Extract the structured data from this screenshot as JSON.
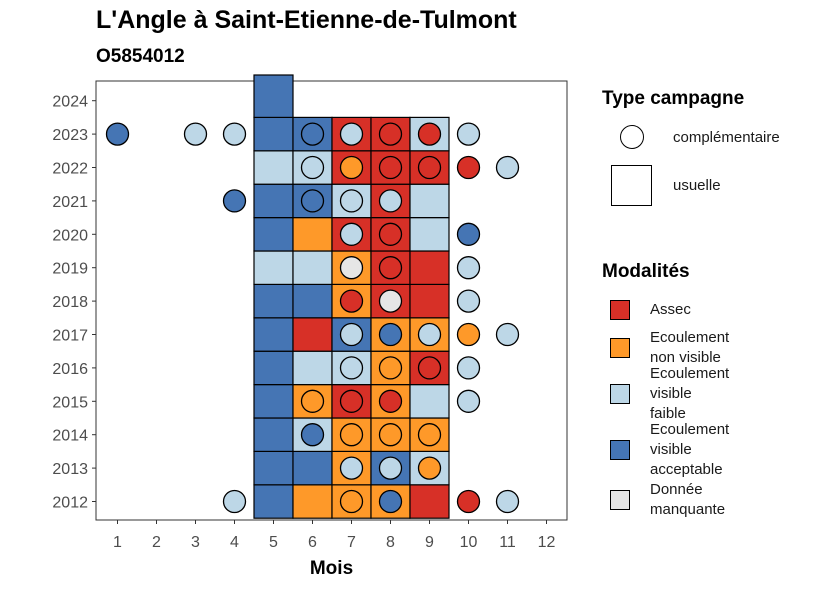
{
  "chart_data": {
    "type": "heatmap",
    "title": "L'Angle à Saint-Etienne-de-Tulmont",
    "subtitle": "O5854012",
    "xlabel": "Mois",
    "ylabel": "",
    "x_ticks": [
      1,
      2,
      3,
      4,
      5,
      6,
      7,
      8,
      9,
      10,
      11,
      12
    ],
    "years": [
      2012,
      2013,
      2014,
      2015,
      2016,
      2017,
      2018,
      2019,
      2020,
      2021,
      2022,
      2023,
      2024
    ],
    "colors": {
      "Assec": "#d73027",
      "Ecoulement non visible": "#fe9929",
      "Ecoulement visible faible": "#bdd7e7",
      "Ecoulement visible acceptable": "#4575b4",
      "Donnée manquante": "#e6e6e6"
    },
    "usuelle": [
      {
        "year": 2012,
        "cells": [
          "Ecoulement visible acceptable",
          "Ecoulement non visible",
          "Ecoulement non visible",
          "Ecoulement non visible",
          "Assec"
        ]
      },
      {
        "year": 2013,
        "cells": [
          "Ecoulement visible acceptable",
          "Ecoulement visible acceptable",
          "Ecoulement non visible",
          "Ecoulement visible acceptable",
          "Ecoulement visible faible"
        ]
      },
      {
        "year": 2014,
        "cells": [
          "Ecoulement visible acceptable",
          "Ecoulement visible faible",
          "Ecoulement non visible",
          "Ecoulement non visible",
          "Ecoulement non visible"
        ]
      },
      {
        "year": 2015,
        "cells": [
          "Ecoulement visible acceptable",
          "Ecoulement non visible",
          "Assec",
          "Ecoulement non visible",
          "Ecoulement visible faible"
        ]
      },
      {
        "year": 2016,
        "cells": [
          "Ecoulement visible acceptable",
          "Ecoulement visible faible",
          "Ecoulement visible faible",
          "Ecoulement non visible",
          "Assec"
        ]
      },
      {
        "year": 2017,
        "cells": [
          "Ecoulement visible acceptable",
          "Assec",
          "Ecoulement visible acceptable",
          "Ecoulement non visible",
          "Ecoulement non visible"
        ]
      },
      {
        "year": 2018,
        "cells": [
          "Ecoulement visible acceptable",
          "Ecoulement visible acceptable",
          "Ecoulement non visible",
          "Assec",
          "Assec"
        ]
      },
      {
        "year": 2019,
        "cells": [
          "Ecoulement visible faible",
          "Ecoulement visible faible",
          "Ecoulement non visible",
          "Assec",
          "Assec"
        ]
      },
      {
        "year": 2020,
        "cells": [
          "Ecoulement visible acceptable",
          "Ecoulement non visible",
          "Assec",
          "Assec",
          "Ecoulement visible faible"
        ]
      },
      {
        "year": 2021,
        "cells": [
          "Ecoulement visible acceptable",
          "Ecoulement visible acceptable",
          "Ecoulement visible faible",
          "Assec",
          "Ecoulement visible faible"
        ]
      },
      {
        "year": 2022,
        "cells": [
          "Ecoulement visible faible",
          "Ecoulement visible faible",
          "Assec",
          "Assec",
          "Assec"
        ]
      },
      {
        "year": 2023,
        "cells": [
          "Ecoulement visible acceptable",
          "Ecoulement visible acceptable",
          "Assec",
          "Assec",
          "Ecoulement visible faible"
        ]
      },
      {
        "year": 2024,
        "cells": [
          "Ecoulement visible acceptable"
        ]
      }
    ],
    "complementaire": [
      {
        "year": 2023,
        "month": 1,
        "value": "Ecoulement visible acceptable"
      },
      {
        "year": 2023,
        "month": 3,
        "value": "Ecoulement visible faible"
      },
      {
        "year": 2023,
        "month": 4,
        "value": "Ecoulement visible faible"
      },
      {
        "year": 2023,
        "month": 6,
        "value": "Ecoulement visible acceptable"
      },
      {
        "year": 2023,
        "month": 7,
        "value": "Ecoulement visible faible"
      },
      {
        "year": 2023,
        "month": 8,
        "value": "Assec"
      },
      {
        "year": 2023,
        "month": 9,
        "value": "Assec"
      },
      {
        "year": 2023,
        "month": 10,
        "value": "Ecoulement visible faible"
      },
      {
        "year": 2022,
        "month": 6,
        "value": "Ecoulement visible faible"
      },
      {
        "year": 2022,
        "month": 7,
        "value": "Ecoulement non visible"
      },
      {
        "year": 2022,
        "month": 8,
        "value": "Assec"
      },
      {
        "year": 2022,
        "month": 9,
        "value": "Assec"
      },
      {
        "year": 2022,
        "month": 10,
        "value": "Assec"
      },
      {
        "year": 2022,
        "month": 11,
        "value": "Ecoulement visible faible"
      },
      {
        "year": 2021,
        "month": 4,
        "value": "Ecoulement visible acceptable"
      },
      {
        "year": 2021,
        "month": 6,
        "value": "Ecoulement visible acceptable"
      },
      {
        "year": 2021,
        "month": 7,
        "value": "Ecoulement visible faible"
      },
      {
        "year": 2021,
        "month": 8,
        "value": "Ecoulement visible faible"
      },
      {
        "year": 2020,
        "month": 7,
        "value": "Ecoulement visible faible"
      },
      {
        "year": 2020,
        "month": 8,
        "value": "Assec"
      },
      {
        "year": 2020,
        "month": 10,
        "value": "Ecoulement visible acceptable"
      },
      {
        "year": 2019,
        "month": 7,
        "value": "Donnée manquante"
      },
      {
        "year": 2019,
        "month": 8,
        "value": "Assec"
      },
      {
        "year": 2019,
        "month": 10,
        "value": "Ecoulement visible faible"
      },
      {
        "year": 2018,
        "month": 7,
        "value": "Assec"
      },
      {
        "year": 2018,
        "month": 8,
        "value": "Donnée manquante"
      },
      {
        "year": 2018,
        "month": 10,
        "value": "Ecoulement visible faible"
      },
      {
        "year": 2017,
        "month": 7,
        "value": "Ecoulement visible faible"
      },
      {
        "year": 2017,
        "month": 8,
        "value": "Ecoulement visible acceptable"
      },
      {
        "year": 2017,
        "month": 9,
        "value": "Ecoulement visible faible"
      },
      {
        "year": 2017,
        "month": 10,
        "value": "Ecoulement non visible"
      },
      {
        "year": 2017,
        "month": 11,
        "value": "Ecoulement visible faible"
      },
      {
        "year": 2016,
        "month": 7,
        "value": "Ecoulement visible faible"
      },
      {
        "year": 2016,
        "month": 8,
        "value": "Ecoulement non visible"
      },
      {
        "year": 2016,
        "month": 9,
        "value": "Assec"
      },
      {
        "year": 2016,
        "month": 10,
        "value": "Ecoulement visible faible"
      },
      {
        "year": 2015,
        "month": 6,
        "value": "Ecoulement non visible"
      },
      {
        "year": 2015,
        "month": 7,
        "value": "Assec"
      },
      {
        "year": 2015,
        "month": 8,
        "value": "Assec"
      },
      {
        "year": 2015,
        "month": 10,
        "value": "Ecoulement visible faible"
      },
      {
        "year": 2014,
        "month": 6,
        "value": "Ecoulement visible acceptable"
      },
      {
        "year": 2014,
        "month": 7,
        "value": "Ecoulement non visible"
      },
      {
        "year": 2014,
        "month": 8,
        "value": "Ecoulement non visible"
      },
      {
        "year": 2014,
        "month": 9,
        "value": "Ecoulement non visible"
      },
      {
        "year": 2013,
        "month": 7,
        "value": "Ecoulement visible faible"
      },
      {
        "year": 2013,
        "month": 8,
        "value": "Ecoulement visible faible"
      },
      {
        "year": 2013,
        "month": 9,
        "value": "Ecoulement non visible"
      },
      {
        "year": 2012,
        "month": 4,
        "value": "Ecoulement visible faible"
      },
      {
        "year": 2012,
        "month": 7,
        "value": "Ecoulement non visible"
      },
      {
        "year": 2012,
        "month": 8,
        "value": "Ecoulement visible acceptable"
      },
      {
        "year": 2012,
        "month": 10,
        "value": "Assec"
      },
      {
        "year": 2012,
        "month": 11,
        "value": "Ecoulement visible faible"
      }
    ]
  },
  "legend": {
    "type_title": "Type campagne",
    "type_complementaire": "complémentaire",
    "type_usuelle": "usuelle",
    "modalites_title": "Modalités",
    "items": [
      {
        "label_lines": [
          "Assec"
        ],
        "color": "#d73027"
      },
      {
        "label_lines": [
          "Ecoulement",
          "non visible"
        ],
        "color": "#fe9929"
      },
      {
        "label_lines": [
          "Ecoulement",
          "visible",
          "faible"
        ],
        "color": "#bdd7e7"
      },
      {
        "label_lines": [
          "Ecoulement",
          "visible",
          "acceptable"
        ],
        "color": "#4575b4"
      },
      {
        "label_lines": [
          "Donnée",
          "manquante"
        ],
        "color": "#e6e6e6"
      }
    ]
  }
}
